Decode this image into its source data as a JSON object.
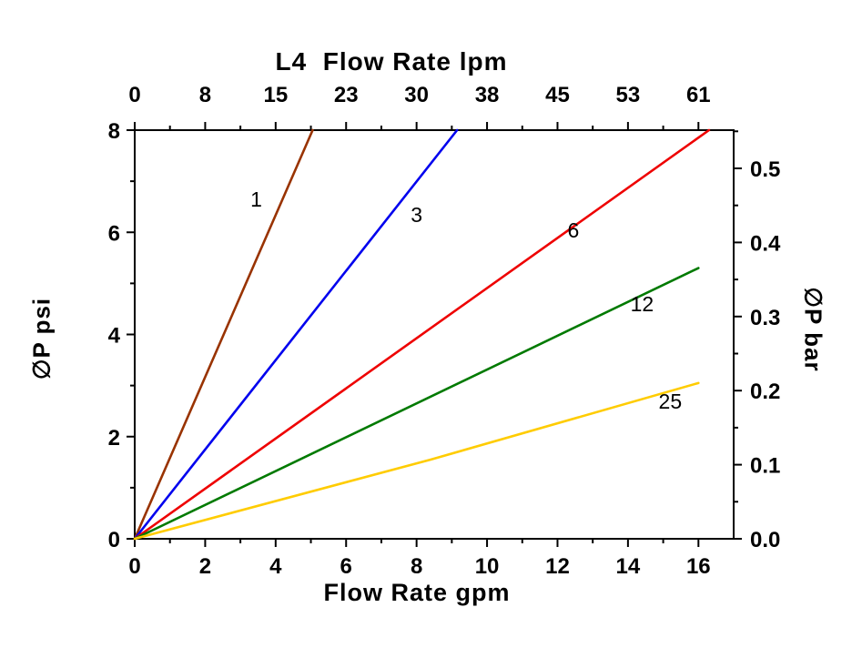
{
  "chart_data": {
    "type": "line",
    "title": "L4  Flow Rate lpm",
    "xlabel": "Flow Rate gpm",
    "ylabel_left": "∅P psi",
    "ylabel_right": "∅P bar",
    "axes": {
      "x_range_gpm": [
        0,
        17
      ],
      "y_range_psi": [
        0,
        8
      ],
      "grid": false,
      "x_bottom": {
        "unit": "gpm",
        "major_ticks": [
          0,
          2,
          4,
          6,
          8,
          10,
          12,
          14,
          16
        ],
        "major_tick_labels": [
          "0",
          "2",
          "4",
          "6",
          "8",
          "10",
          "12",
          "14",
          "16"
        ],
        "minor_ticks": [
          1,
          3,
          5,
          7,
          9,
          11,
          13,
          15
        ]
      },
      "x_top": {
        "unit": "lpm",
        "tick_labels": [
          "0",
          "8",
          "15",
          "23",
          "30",
          "38",
          "45",
          "53",
          "61"
        ],
        "at_gpm": [
          0,
          2,
          4,
          6,
          8,
          10,
          12,
          14,
          16
        ],
        "minor_at_gpm": [
          1,
          3,
          5,
          7,
          9,
          11,
          13,
          15
        ]
      },
      "y_left": {
        "unit": "psi",
        "major_ticks": [
          0,
          2,
          4,
          6,
          8
        ],
        "major_tick_labels": [
          "0",
          "2",
          "4",
          "6",
          "8"
        ],
        "minor_ticks": [
          1,
          3,
          5,
          7
        ]
      },
      "y_right": {
        "unit": "bar",
        "major_ticks": [
          0.0,
          0.1,
          0.2,
          0.3,
          0.4,
          0.5
        ],
        "tick_labels": [
          "0.0",
          "0.1",
          "0.2",
          "0.3",
          "0.4",
          "0.5"
        ],
        "minor_ticks": [
          0.05,
          0.15,
          0.25,
          0.35,
          0.45,
          0.55
        ],
        "psi_per_bar": 14.5038
      }
    },
    "series": [
      {
        "name": "1",
        "color": "#993300",
        "points_gpm_psi": [
          [
            0,
            0
          ],
          [
            5.05,
            8
          ]
        ]
      },
      {
        "name": "3",
        "color": "#0000EE",
        "points_gpm_psi": [
          [
            0,
            0
          ],
          [
            9.15,
            8
          ]
        ]
      },
      {
        "name": "6",
        "color": "#EE0000",
        "points_gpm_psi": [
          [
            0,
            0
          ],
          [
            16.3,
            8
          ]
        ]
      },
      {
        "name": "12",
        "color": "#007A00",
        "points_gpm_psi": [
          [
            0,
            0
          ],
          [
            16,
            5.3
          ]
        ]
      },
      {
        "name": "25",
        "color": "#FFCC00",
        "points_gpm_psi": [
          [
            0,
            0
          ],
          [
            8.4,
            1.55
          ],
          [
            16,
            3.05
          ]
        ]
      }
    ],
    "series_labels": [
      {
        "text": "1",
        "gpm": 3.45,
        "psi": 6.5
      },
      {
        "text": "3",
        "gpm": 8.0,
        "psi": 6.2
      },
      {
        "text": "6",
        "gpm": 12.45,
        "psi": 5.9
      },
      {
        "text": "12",
        "gpm": 14.4,
        "psi": 4.45
      },
      {
        "text": "25",
        "gpm": 15.2,
        "psi": 2.55
      }
    ],
    "style": {
      "frame_color": "#000000",
      "text_color": "#000000",
      "line_width": 2.6
    }
  }
}
